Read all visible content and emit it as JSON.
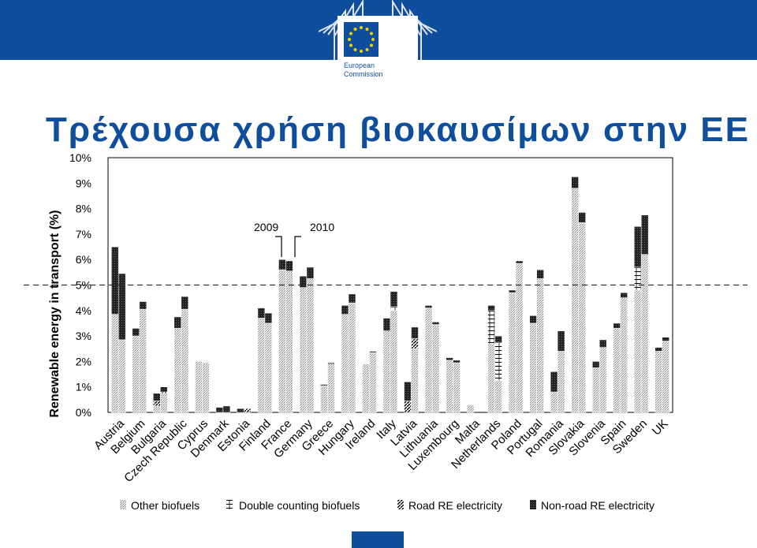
{
  "header": {
    "logo_text_line1": "European",
    "logo_text_line2": "Commission",
    "brand_color": "#0e4e9c"
  },
  "title": "Τρέχουσα χρήση βιοκαυσίμων στην ΕΕ",
  "chart_data": {
    "type": "bar",
    "stacked": true,
    "ylabel": "Renewable energy in transport (%)",
    "ylim": [
      0,
      10
    ],
    "yticks": [
      "0%",
      "1%",
      "2%",
      "3%",
      "4%",
      "5%",
      "6%",
      "7%",
      "8%",
      "9%",
      "10%"
    ],
    "reference_line": 5,
    "annotation": {
      "left": "2009",
      "right": "2010",
      "points_at": "France"
    },
    "categories": [
      "Austria",
      "Belgium",
      "Bulgaria",
      "Czech Republic",
      "Cyprus",
      "Denmark",
      "Estonia",
      "Finland",
      "France",
      "Germany",
      "Greece",
      "Hungary",
      "Ireland",
      "Italy",
      "Latvia",
      "Lithuania",
      "Luxembourg",
      "Malta",
      "Netherlands",
      "Poland",
      "Portugal",
      "Romania",
      "Slovakia",
      "Slovenia",
      "Spain",
      "Sweden",
      "UK"
    ],
    "years": [
      "2009",
      "2010"
    ],
    "legend": [
      "Other biofuels",
      "Double counting biofuels",
      "Road RE electricity",
      "Non-road RE electricity"
    ],
    "series": [
      {
        "name": "Other biofuels",
        "values_2009": [
          3.85,
          3.0,
          0.25,
          3.3,
          2.0,
          0.0,
          0.0,
          3.7,
          5.6,
          4.9,
          1.05,
          3.85,
          1.9,
          3.2,
          0.0,
          4.1,
          2.05,
          0.3,
          2.7,
          4.7,
          3.5,
          0.8,
          8.8,
          1.75,
          3.3,
          4.8,
          2.4
        ],
        "values_2010": [
          2.85,
          4.05,
          0.75,
          4.05,
          1.95,
          0.0,
          0.0,
          3.5,
          5.55,
          5.25,
          1.9,
          4.3,
          2.35,
          4.0,
          2.5,
          3.45,
          1.95,
          0.0,
          1.25,
          5.85,
          5.25,
          2.4,
          7.45,
          2.55,
          4.5,
          6.2,
          2.8
        ]
      },
      {
        "name": "Double counting biofuels",
        "values_2009": [
          0,
          0,
          0,
          0,
          0,
          0,
          0,
          0,
          0,
          0,
          0,
          0,
          0,
          0,
          0,
          0,
          0,
          0,
          1.3,
          0,
          0,
          0,
          0,
          0,
          0,
          0.9,
          0
        ],
        "values_2010": [
          0,
          0,
          0,
          0,
          0,
          0,
          0,
          0,
          0,
          0,
          0,
          0,
          0,
          0.15,
          0,
          0,
          0,
          0,
          1.5,
          0,
          0,
          0,
          0,
          0,
          0,
          0,
          0
        ]
      },
      {
        "name": "Road RE electricity",
        "values_2009": [
          0,
          0,
          0.2,
          0,
          0,
          0,
          0,
          0,
          0,
          0,
          0,
          0,
          0,
          0,
          0.45,
          0,
          0,
          0,
          0,
          0,
          0,
          0,
          0,
          0,
          0,
          0,
          0
        ],
        "values_2010": [
          0,
          0,
          0.05,
          0,
          0,
          0,
          0.15,
          0,
          0,
          0,
          0,
          0,
          0,
          0,
          0.4,
          0,
          0,
          0,
          0,
          0,
          0,
          0,
          0,
          0,
          0,
          0,
          0
        ]
      },
      {
        "name": "Non-road RE electricity",
        "values_2009": [
          2.65,
          0.3,
          0.3,
          0.45,
          0,
          0.2,
          0.15,
          0.4,
          0.4,
          0.45,
          0.05,
          0.35,
          0,
          0.5,
          0.75,
          0.1,
          0.1,
          0,
          0.2,
          0.1,
          0.3,
          0.8,
          0.45,
          0.25,
          0.2,
          1.6,
          0.15
        ],
        "values_2010": [
          2.6,
          0.3,
          0.2,
          0.5,
          0,
          0.25,
          0,
          0.4,
          0.4,
          0.45,
          0.05,
          0.35,
          0.05,
          0.6,
          0.45,
          0.1,
          0.1,
          0,
          0.25,
          0.1,
          0.35,
          0.8,
          0.4,
          0.3,
          0.2,
          1.55,
          0.15
        ]
      }
    ]
  }
}
